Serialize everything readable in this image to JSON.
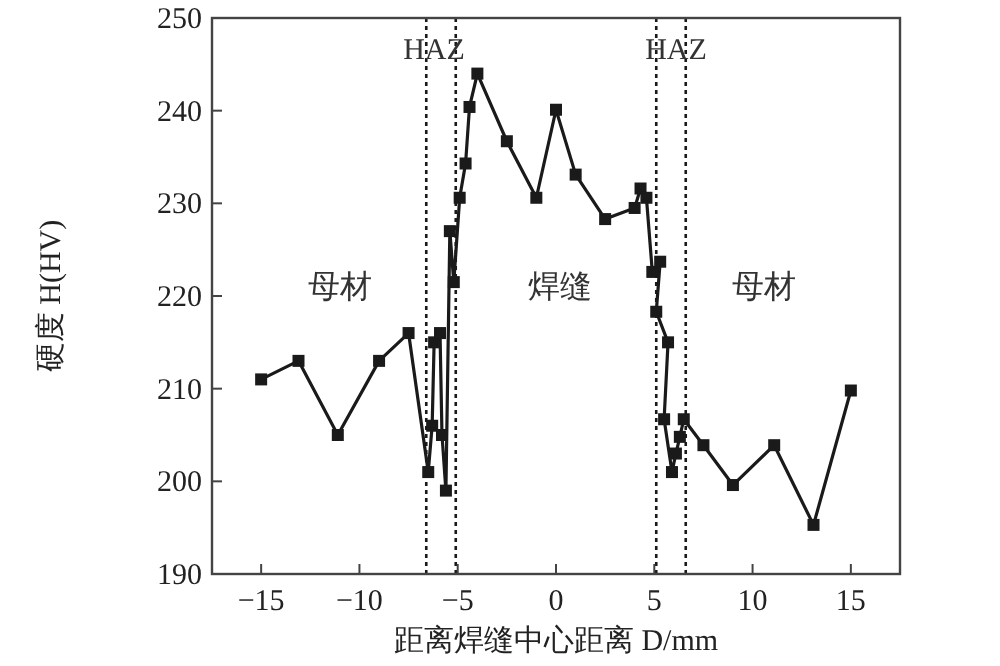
{
  "chart_data": {
    "type": "line",
    "xlabel": "距离焊缝中心距离 D/mm",
    "ylabel": "硬度 H(HV)",
    "x": [
      -15,
      -13.1,
      -11.1,
      -9.0,
      -7.5,
      -6.5,
      -6.3,
      -6.2,
      -5.9,
      -5.8,
      -5.6,
      -5.4,
      -5.2,
      -4.9,
      -4.6,
      -4.4,
      -4.0,
      -2.5,
      -1.0,
      0.0,
      1.0,
      2.5,
      4.0,
      4.3,
      4.6,
      4.9,
      5.3,
      5.1,
      5.7,
      5.5,
      5.9,
      6.1,
      6.3,
      6.5,
      7.5,
      9.0,
      11.1,
      13.1,
      15.0
    ],
    "series": [
      {
        "color": "#1a1a1a",
        "values": [
          211,
          213,
          205,
          213,
          216,
          201,
          206,
          215,
          216,
          205,
          199,
          227,
          221.5,
          230.6,
          234.3,
          240.4,
          244,
          236.7,
          230.6,
          240.1,
          233.1,
          228.3,
          229.5,
          231.6,
          230.6,
          222.6,
          223.7,
          218.3,
          215,
          206.7,
          201,
          203,
          204.8,
          206.7,
          203.9,
          199.6,
          203.9,
          195.3,
          209.8
        ]
      }
    ],
    "marker": "square",
    "line_style": "solid",
    "xlim": [
      -17.5,
      17.5
    ],
    "ylim": [
      190,
      250
    ],
    "xticks": [
      -15,
      -10,
      -5,
      0,
      5,
      10,
      15
    ],
    "yticks": [
      190,
      200,
      210,
      220,
      230,
      240,
      250
    ],
    "ref_lines": [
      {
        "axis": "x",
        "value": -6.6,
        "line_style": "dotted",
        "color": "#1a1a1a"
      },
      {
        "axis": "x",
        "value": -5.1,
        "line_style": "dotted",
        "color": "#1a1a1a"
      },
      {
        "axis": "x",
        "value": 5.1,
        "line_style": "dotted",
        "color": "#1a1a1a"
      },
      {
        "axis": "x",
        "value": 6.6,
        "line_style": "dotted",
        "color": "#1a1a1a"
      }
    ],
    "annotations": [
      "HAZ",
      "HAZ",
      "母材",
      "焊缝",
      "母材"
    ]
  }
}
